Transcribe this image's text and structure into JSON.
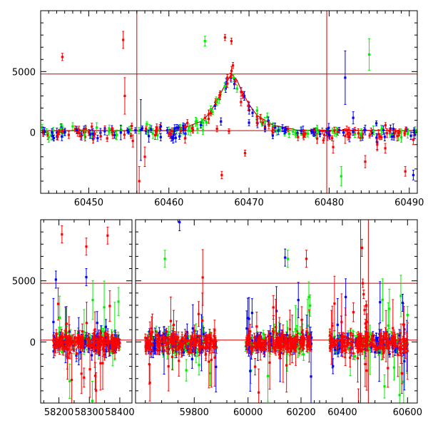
{
  "chart_data": [
    {
      "type": "scatter",
      "panel": "top",
      "title": "",
      "xlabel": "",
      "ylabel": "",
      "xlim": [
        60444,
        60491
      ],
      "ylim": [
        -5000,
        10000
      ],
      "xticks": [
        60450,
        60460,
        60470,
        60480,
        60490
      ],
      "yticks": [
        0,
        5000
      ],
      "grid": false,
      "legend": "none",
      "colors": {
        "red": "#ff0000",
        "green": "#00ee00",
        "blue": "#0000ff",
        "model": "#cc0000"
      },
      "hlines": [
        4800,
        150
      ],
      "vlines": [
        60456,
        60479.7
      ],
      "model_curve": {
        "x": [
          60444,
          60460,
          60462,
          60464,
          60465,
          60466,
          60467,
          60467.8,
          60468.5,
          60469,
          60470,
          60471,
          60473,
          60476,
          60491
        ],
        "y": [
          150,
          150,
          400,
          900,
          1500,
          2600,
          3900,
          4800,
          4300,
          3500,
          2300,
          1400,
          600,
          200,
          150
        ]
      },
      "series": [
        {
          "color": "blue",
          "x": [
            60444.5,
            60445.5,
            60447,
            60448.5,
            60450.5,
            60452,
            60454,
            60456.5,
            60457.5,
            60459,
            60461,
            60464,
            60466.5,
            60470,
            60472,
            60474.5,
            60476.5,
            60478,
            60480,
            60482,
            60483,
            60484.5,
            60486,
            60488,
            60490.5
          ],
          "y": [
            100,
            -300,
            0,
            200,
            -100,
            100,
            0,
            200,
            -300,
            500,
            400,
            600,
            900,
            800,
            300,
            200,
            150,
            0,
            -200,
            4500,
            1200,
            200,
            -800,
            300,
            -3500
          ],
          "err": [
            300,
            300,
            250,
            300,
            400,
            300,
            600,
            2500,
            500,
            300,
            250,
            250,
            300,
            250,
            250,
            250,
            250,
            250,
            300,
            2200,
            500,
            400,
            600,
            400,
            400
          ]
        },
        {
          "color": "green",
          "x": [
            60445,
            60446.5,
            60448,
            60449.5,
            60451,
            60452.5,
            60453.5,
            60458,
            60460,
            60462.5,
            60464.5,
            60466,
            60467,
            60468.5,
            60471,
            60473,
            60475,
            60478.5,
            60481.5,
            60484,
            60485,
            60486.5,
            60489
          ],
          "y": [
            -400,
            300,
            500,
            -200,
            400,
            100,
            -200,
            -100,
            100,
            400,
            7500,
            2500,
            3800,
            3600,
            1800,
            500,
            -100,
            300,
            -3600,
            -100,
            6400,
            200,
            -400
          ],
          "err": [
            400,
            350,
            300,
            350,
            400,
            300,
            400,
            400,
            350,
            300,
            400,
            300,
            300,
            300,
            300,
            300,
            300,
            300,
            800,
            400,
            1300,
            400,
            400
          ]
        },
        {
          "color": "red",
          "x": [
            60446.7,
            60447.5,
            60449,
            60450,
            60451.5,
            60453,
            60454.3,
            60454.5,
            60455.5,
            60456.3,
            60457,
            60458.5,
            60460,
            60461.5,
            60463,
            60464.5,
            60466,
            60466.6,
            60467,
            60467.3,
            60467.5,
            60467.8,
            60468,
            60468.3,
            60469,
            60469.5,
            60471,
            60473,
            60477,
            60478.5,
            60480.5,
            60482,
            60484.5,
            60486,
            60487,
            60488.5,
            60489.5,
            60490.5
          ],
          "y": [
            6200,
            -200,
            -300,
            0,
            -300,
            -200,
            7600,
            3000,
            -700,
            -4000,
            -2000,
            200,
            -100,
            150,
            200,
            1200,
            300,
            -3500,
            7800,
            4500,
            100,
            7500,
            5500,
            4200,
            2500,
            -1700,
            800,
            200,
            -100,
            -500,
            -1200,
            -300,
            -2400,
            -1000,
            -1300,
            -300,
            -3200,
            -600
          ],
          "err": [
            300,
            300,
            300,
            250,
            300,
            300,
            700,
            1500,
            500,
            1200,
            800,
            300,
            250,
            250,
            250,
            250,
            250,
            300,
            250,
            250,
            200,
            250,
            250,
            250,
            300,
            250,
            250,
            250,
            300,
            400,
            500,
            600,
            500,
            500,
            400,
            400,
            400,
            400
          ]
        }
      ]
    },
    {
      "type": "scatter",
      "panel": "bottom",
      "title": "",
      "xlabel": "",
      "ylabel": "",
      "xlim_segments": [
        [
          58140,
          58440
        ],
        [
          59620,
          59900
        ],
        [
          59920,
          60270
        ],
        [
          60330,
          60630
        ]
      ],
      "ylim": [
        -5000,
        10000
      ],
      "xticks": [
        58200,
        58300,
        58400,
        59800,
        60000,
        60200,
        60400,
        60600
      ],
      "yticks": [
        0,
        5000
      ],
      "grid": false,
      "legend": "none",
      "colors": {
        "red": "#ff0000",
        "green": "#00ee00",
        "blue": "#0000ff",
        "model": "#cc0000"
      },
      "hlines": [
        4800,
        150
      ],
      "vlines": [
        60456,
        60479.7
      ],
      "observing_windows": [
        [
          58180,
          58400
        ],
        [
          59650,
          59870
        ],
        [
          59990,
          60240
        ],
        [
          60360,
          60600
        ]
      ],
      "notable_points": [
        {
          "color": "red",
          "x": 58210,
          "y": 8800
        },
        {
          "color": "red",
          "x": 58290,
          "y": 7800
        },
        {
          "color": "red",
          "x": 58360,
          "y": 8700
        },
        {
          "color": "blue",
          "x": 58190,
          "y": 5100
        },
        {
          "color": "blue",
          "x": 58290,
          "y": 5300
        },
        {
          "color": "blue",
          "x": 59755,
          "y": 9800
        },
        {
          "color": "green",
          "x": 59710,
          "y": 6800
        },
        {
          "color": "blue",
          "x": 60140,
          "y": 6900
        },
        {
          "color": "green",
          "x": 60150,
          "y": 6800
        },
        {
          "color": "red",
          "x": 60220,
          "y": 6800
        },
        {
          "color": "red",
          "x": 60460,
          "y": 7700
        },
        {
          "color": "blue",
          "x": 60585,
          "y": 3200
        },
        {
          "color": "green",
          "x": 60600,
          "y": 2200
        }
      ],
      "scatter_sigma": {
        "red": 700,
        "green": 900,
        "blue": 800
      }
    }
  ]
}
